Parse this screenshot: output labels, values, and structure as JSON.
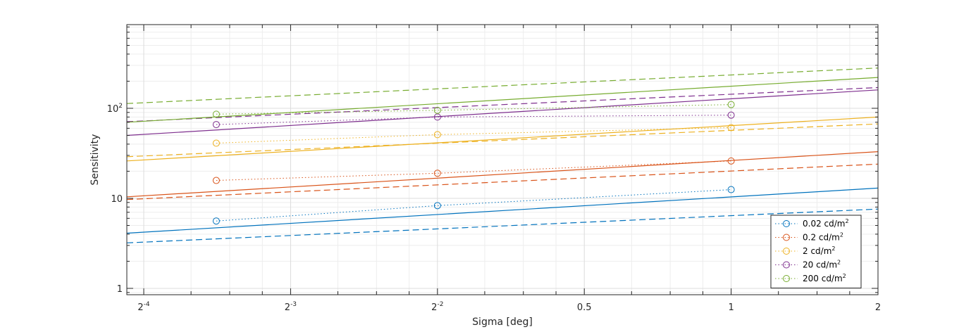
{
  "chart_data": {
    "type": "line",
    "xlabel": "Sigma [deg]",
    "ylabel": "Sensitivity",
    "x_scale": "log2",
    "y_scale": "log10",
    "xlim": [
      0.0577,
      2
    ],
    "ylim": [
      0.85,
      850
    ],
    "grid": true,
    "legend_position": "bottom-right",
    "x_ticks": [
      {
        "value": 0.0625,
        "base": "2",
        "exp": "-4",
        "text": ""
      },
      {
        "value": 0.125,
        "base": "2",
        "exp": "-3",
        "text": ""
      },
      {
        "value": 0.25,
        "base": "2",
        "exp": "-2",
        "text": ""
      },
      {
        "value": 0.5,
        "base": "",
        "exp": "",
        "text": "0.5"
      },
      {
        "value": 1,
        "base": "",
        "exp": "",
        "text": "1"
      },
      {
        "value": 2,
        "base": "",
        "exp": "",
        "text": "2"
      }
    ],
    "y_ticks": [
      {
        "value": 1,
        "base": "1",
        "exp": ""
      },
      {
        "value": 10,
        "base": "10",
        "exp": ""
      },
      {
        "value": 100,
        "base": "10",
        "exp": "2"
      }
    ],
    "series": [
      {
        "name": "0.02 cd/m",
        "name_sup": "2",
        "color": "#0072BD",
        "measured": {
          "x": [
            0.088,
            0.25,
            1
          ],
          "y": [
            5.6,
            8.3,
            12.5
          ]
        },
        "model_solid": {
          "x": [
            0.0577,
            2
          ],
          "y": [
            4.1,
            13.0
          ]
        },
        "model_dashed": {
          "x": [
            0.0577,
            2
          ],
          "y": [
            3.2,
            7.6
          ]
        }
      },
      {
        "name": "0.2 cd/m",
        "name_sup": "2",
        "color": "#D95319",
        "measured": {
          "x": [
            0.088,
            0.25,
            1
          ],
          "y": [
            15.8,
            19.0,
            26.0
          ]
        },
        "model_solid": {
          "x": [
            0.0577,
            2
          ],
          "y": [
            10.4,
            33.0
          ]
        },
        "model_dashed": {
          "x": [
            0.0577,
            2
          ],
          "y": [
            9.7,
            24.0
          ]
        }
      },
      {
        "name": "2 cd/m",
        "name_sup": "2",
        "color": "#EDB120",
        "measured": {
          "x": [
            0.088,
            0.25,
            1
          ],
          "y": [
            41.0,
            51.0,
            61.0
          ]
        },
        "model_solid": {
          "x": [
            0.0577,
            2
          ],
          "y": [
            26.0,
            80.0
          ]
        },
        "model_dashed": {
          "x": [
            0.0577,
            2
          ],
          "y": [
            29.0,
            67.0
          ]
        }
      },
      {
        "name": "20 cd/m",
        "name_sup": "2",
        "color": "#7E2F8E",
        "measured": {
          "x": [
            0.088,
            0.25,
            1
          ],
          "y": [
            66.0,
            80.0,
            84.0
          ]
        },
        "model_solid": {
          "x": [
            0.0577,
            2
          ],
          "y": [
            50.0,
            160.0
          ]
        },
        "model_dashed": {
          "x": [
            0.0577,
            2
          ],
          "y": [
            71.0,
            170.0
          ]
        }
      },
      {
        "name": "200 cd/m",
        "name_sup": "2",
        "color": "#77AC30",
        "measured": {
          "x": [
            0.088,
            0.25,
            1
          ],
          "y": [
            86.0,
            95.0,
            110.0
          ]
        },
        "model_solid": {
          "x": [
            0.0577,
            2
          ],
          "y": [
            70.0,
            220.0
          ]
        },
        "model_dashed": {
          "x": [
            0.0577,
            2
          ],
          "y": [
            113.0,
            280.0
          ]
        }
      }
    ]
  }
}
